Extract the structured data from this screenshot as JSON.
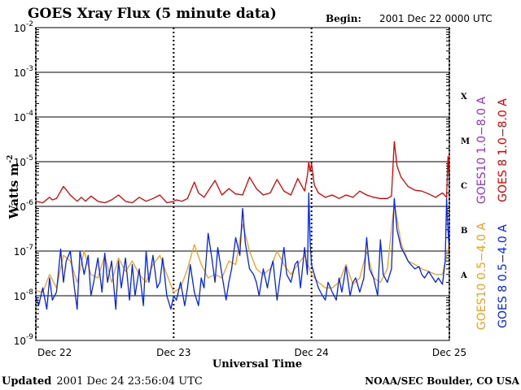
{
  "chart_data": {
    "type": "line",
    "title": "GOES Xray Flux (5 minute data)",
    "begin_label": "Begin:",
    "begin_value": "2001 Dec 22 0000 UTC",
    "ylabel": "Watts m",
    "ylabel_sup": "-2",
    "xlabel": "Universal Time",
    "y_scale": "log",
    "ylim": [
      1e-09,
      0.01
    ],
    "y_ticks": [
      {
        "base": "10",
        "exp": "-2",
        "value": 0.01
      },
      {
        "base": "10",
        "exp": "-3",
        "value": 0.001
      },
      {
        "base": "10",
        "exp": "-4",
        "value": 0.0001
      },
      {
        "base": "10",
        "exp": "-5",
        "value": 1e-05
      },
      {
        "base": "10",
        "exp": "-6",
        "value": 1e-06
      },
      {
        "base": "10",
        "exp": "-7",
        "value": 1e-07
      },
      {
        "base": "10",
        "exp": "-8",
        "value": 1e-08
      },
      {
        "base": "10",
        "exp": "-9",
        "value": 1e-09
      }
    ],
    "x_ticks": [
      "Dec 22",
      "Dec 23",
      "Dec 24",
      "Dec 25"
    ],
    "xlim_days": [
      0,
      3
    ],
    "grid": true,
    "flare_classes": [
      {
        "label": "X",
        "value": 0.0003
      },
      {
        "label": "M",
        "value": 3e-05
      },
      {
        "label": "C",
        "value": 3e-06
      },
      {
        "label": "B",
        "value": 3e-07
      },
      {
        "label": "A",
        "value": 3e-08
      }
    ],
    "legend": [
      {
        "text": "GOES10 1.0−8.0 A",
        "color": "#9933cc"
      },
      {
        "text": "GOES 8 1.0−8.0 A",
        "color": "#dd0000"
      },
      {
        "text": "GOES10 0.5−4.0 A",
        "color": "#f0a020"
      },
      {
        "text": "GOES 8 0.5−4.0 A",
        "color": "#0022ff"
      }
    ],
    "series": [
      {
        "name": "GOES 8 1.0−8.0 A",
        "color": "#dd0000",
        "x": [
          0.0,
          0.05,
          0.1,
          0.12,
          0.15,
          0.2,
          0.25,
          0.3,
          0.33,
          0.36,
          0.4,
          0.45,
          0.5,
          0.55,
          0.6,
          0.65,
          0.7,
          0.75,
          0.8,
          0.85,
          0.9,
          0.95,
          1.0,
          1.02,
          1.06,
          1.1,
          1.15,
          1.18,
          1.22,
          1.3,
          1.35,
          1.4,
          1.45,
          1.5,
          1.55,
          1.6,
          1.65,
          1.7,
          1.75,
          1.8,
          1.85,
          1.9,
          1.95,
          1.97,
          1.98,
          1.99,
          2.0,
          2.02,
          2.05,
          2.1,
          2.15,
          2.2,
          2.25,
          2.3,
          2.35,
          2.4,
          2.45,
          2.5,
          2.55,
          2.58,
          2.6,
          2.62,
          2.65,
          2.7,
          2.75,
          2.8,
          2.85,
          2.9,
          2.95,
          2.98,
          2.99,
          3.0
        ],
        "y": [
          1.3e-06,
          1.2e-06,
          1.6e-06,
          1.4e-06,
          1.5e-06,
          2.8e-06,
          1.8e-06,
          1.3e-06,
          1.6e-06,
          1.3e-06,
          1.7e-06,
          1.3e-06,
          1.2e-06,
          1.4e-06,
          1.8e-06,
          1.3e-06,
          1.2e-06,
          1.6e-06,
          1.3e-06,
          1.5e-06,
          1.8e-06,
          1.2e-06,
          1.3e-06,
          1.4e-06,
          1.3e-06,
          1.5e-06,
          3.5e-06,
          2e-06,
          1.6e-06,
          3.8e-06,
          1.8e-06,
          2.5e-06,
          1.9e-06,
          1.8e-06,
          4.5e-06,
          2.5e-06,
          1.8e-06,
          2e-06,
          4e-06,
          2.2e-06,
          1.8e-06,
          4.2e-06,
          2.2e-06,
          5e-06,
          1e-05,
          6e-06,
          9e-06,
          3e-06,
          2e-06,
          1.6e-06,
          1.8e-06,
          1.5e-06,
          1.8e-06,
          1.6e-06,
          2.2e-06,
          1.8e-06,
          1.6e-06,
          1.5e-06,
          1.5e-06,
          1.7e-06,
          2.8e-05,
          8e-06,
          4.5e-06,
          2.8e-06,
          2.3e-06,
          2.2e-06,
          1.9e-06,
          1.6e-06,
          2e-06,
          1.6e-06,
          1.3e-05,
          3.5e-06
        ]
      },
      {
        "name": "GOES10 0.5−4.0 A",
        "color": "#f0a020",
        "x": [
          0.0,
          0.05,
          0.1,
          0.15,
          0.2,
          0.25,
          0.3,
          0.35,
          0.4,
          0.45,
          0.5,
          0.55,
          0.6,
          0.65,
          0.7,
          0.75,
          0.8,
          0.85,
          0.9,
          0.95,
          1.0,
          1.05,
          1.1,
          1.15,
          1.2,
          1.25,
          1.3,
          1.35,
          1.4,
          1.45,
          1.5,
          1.55,
          1.6,
          1.65,
          1.7,
          1.75,
          1.8,
          1.85,
          1.9,
          1.95,
          2.0,
          2.05,
          2.1,
          2.15,
          2.2,
          2.25,
          2.3,
          2.35,
          2.4,
          2.45,
          2.5,
          2.55,
          2.6,
          2.65,
          2.7,
          2.75,
          2.8,
          2.85,
          2.9,
          2.95,
          3.0
        ],
        "y": [
          1.3e-08,
          1.2e-08,
          3e-08,
          1.5e-08,
          8e-08,
          6e-08,
          2e-08,
          1e-07,
          3e-08,
          2.5e-08,
          8e-08,
          2e-08,
          7e-08,
          3.5e-08,
          6e-08,
          3e-08,
          2e-08,
          5e-08,
          8e-08,
          3e-08,
          1.2e-08,
          1.5e-08,
          4e-08,
          1.4e-07,
          5e-08,
          2.5e-08,
          3e-08,
          2.5e-08,
          6e-08,
          5e-08,
          4e-07,
          1e-07,
          4e-08,
          3e-08,
          4e-08,
          1e-07,
          5e-08,
          3e-08,
          5e-08,
          8e-08,
          3e-08,
          2e-08,
          1.5e-08,
          1.5e-08,
          2e-08,
          5e-08,
          1.8e-08,
          2.5e-08,
          1e-07,
          2.5e-08,
          2e-08,
          4e-08,
          1.2e-06,
          1.5e-07,
          6e-08,
          5e-08,
          4e-08,
          3.5e-08,
          3e-08,
          3e-08,
          1.5e-07
        ]
      },
      {
        "name": "GOES 8 0.5−4.0 A",
        "color": "#0022ff",
        "x": [
          0.0,
          0.02,
          0.05,
          0.08,
          0.1,
          0.12,
          0.15,
          0.18,
          0.2,
          0.22,
          0.25,
          0.28,
          0.3,
          0.32,
          0.35,
          0.38,
          0.4,
          0.42,
          0.45,
          0.48,
          0.5,
          0.52,
          0.55,
          0.58,
          0.6,
          0.62,
          0.65,
          0.68,
          0.7,
          0.72,
          0.75,
          0.78,
          0.8,
          0.82,
          0.85,
          0.88,
          0.9,
          0.92,
          0.95,
          0.98,
          1.0,
          1.02,
          1.05,
          1.08,
          1.1,
          1.12,
          1.15,
          1.18,
          1.2,
          1.22,
          1.25,
          1.28,
          1.3,
          1.32,
          1.35,
          1.38,
          1.4,
          1.42,
          1.45,
          1.48,
          1.5,
          1.52,
          1.55,
          1.58,
          1.6,
          1.62,
          1.65,
          1.68,
          1.7,
          1.72,
          1.75,
          1.78,
          1.8,
          1.82,
          1.85,
          1.88,
          1.9,
          1.92,
          1.95,
          1.97,
          1.98,
          1.99,
          2.0,
          2.02,
          2.05,
          2.08,
          2.1,
          2.12,
          2.15,
          2.18,
          2.2,
          2.22,
          2.25,
          2.28,
          2.3,
          2.32,
          2.35,
          2.38,
          2.4,
          2.42,
          2.45,
          2.48,
          2.5,
          2.52,
          2.55,
          2.58,
          2.6,
          2.62,
          2.65,
          2.68,
          2.7,
          2.72,
          2.75,
          2.78,
          2.8,
          2.82,
          2.85,
          2.88,
          2.9,
          2.92,
          2.95,
          2.97,
          2.98,
          2.99,
          3.0
        ],
        "y": [
          1e-08,
          6e-09,
          1.5e-08,
          5e-09,
          2.5e-08,
          8e-09,
          1.2e-08,
          1.1e-07,
          2e-08,
          6e-08,
          1e-07,
          1.5e-08,
          5e-09,
          1e-07,
          3e-08,
          8e-08,
          1e-08,
          2e-08,
          7e-08,
          1.2e-08,
          9e-08,
          2e-08,
          6e-08,
          5e-09,
          6e-08,
          1.5e-08,
          7e-08,
          8e-09,
          5e-08,
          1e-08,
          4e-08,
          6e-09,
          1e-07,
          2e-08,
          8e-08,
          1.5e-08,
          2e-08,
          7e-08,
          1e-08,
          5e-09,
          1e-08,
          8e-09,
          2e-08,
          6e-09,
          1.5e-08,
          5e-08,
          1.2e-08,
          6e-09,
          2.5e-08,
          1.5e-08,
          2.5e-07,
          6e-08,
          2e-08,
          1.2e-07,
          3e-08,
          8e-09,
          2e-08,
          4e-08,
          2e-07,
          8e-08,
          9e-07,
          1.5e-07,
          4e-08,
          3e-08,
          2e-08,
          1e-08,
          4e-08,
          1.5e-08,
          3.5e-08,
          6e-08,
          8e-09,
          4e-08,
          1.2e-07,
          3e-08,
          2e-08,
          5e-08,
          6e-08,
          1.5e-08,
          1.2e-07,
          3e-08,
          2e-06,
          1.5e-07,
          5e-08,
          3e-08,
          1.5e-08,
          1e-08,
          8e-09,
          2e-08,
          1.2e-08,
          8e-09,
          2.5e-08,
          1.2e-08,
          4.5e-08,
          1e-08,
          2e-08,
          2.5e-08,
          1.2e-08,
          2.5e-08,
          2e-07,
          4e-08,
          2.5e-08,
          1e-08,
          1.8e-07,
          3e-08,
          2e-08,
          4e-08,
          1.5e-06,
          3e-07,
          1.2e-07,
          8e-08,
          6e-08,
          5e-08,
          4e-08,
          4.5e-08,
          3e-08,
          2.5e-08,
          3.5e-08,
          2.5e-08,
          2e-08,
          2.5e-08,
          1.8e-08,
          6e-08,
          1.5e-06,
          3e-07,
          1e-07
        ]
      }
    ]
  },
  "footer": {
    "updated_label": "Updated",
    "updated_value": "2001 Dec 24 23:56:04 UTC",
    "credit": "NOAA/SEC Boulder, CO USA"
  }
}
